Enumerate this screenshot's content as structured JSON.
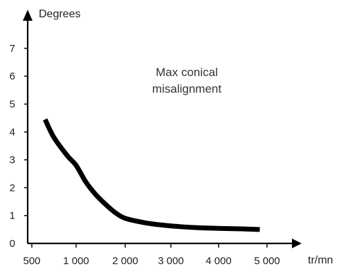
{
  "chart_data": {
    "type": "line",
    "title": "",
    "xlabel": "tr/mn",
    "ylabel": "Degrees",
    "annotation": [
      "Max conical",
      "misalignment"
    ],
    "x_ticks": [
      {
        "value": 500,
        "label": "500"
      },
      {
        "value": 1000,
        "label": "1 000"
      },
      {
        "value": 2000,
        "label": "2 000"
      },
      {
        "value": 3000,
        "label": "3 000"
      },
      {
        "value": 4000,
        "label": "4 000"
      },
      {
        "value": 5000,
        "label": "5 000"
      }
    ],
    "y_ticks": [
      {
        "value": 0,
        "label": "0"
      },
      {
        "value": 1,
        "label": "1"
      },
      {
        "value": 2,
        "label": "2"
      },
      {
        "value": 3,
        "label": "3"
      },
      {
        "value": 4,
        "label": "4"
      },
      {
        "value": 5,
        "label": "5"
      },
      {
        "value": 6,
        "label": "6"
      },
      {
        "value": 7,
        "label": "7"
      }
    ],
    "xlim": [
      500,
      5000
    ],
    "ylim": [
      0,
      7
    ],
    "grid": false,
    "series": [
      {
        "x": [
          650,
          750,
          900,
          1000,
          1200,
          1400,
          1600,
          1800,
          2000,
          2400,
          2800,
          3200,
          3600,
          4000,
          4500,
          4850
        ],
        "y": [
          4.45,
          3.8,
          3.15,
          2.8,
          2.2,
          1.75,
          1.4,
          1.1,
          0.9,
          0.75,
          0.66,
          0.6,
          0.56,
          0.54,
          0.52,
          0.5
        ]
      }
    ],
    "colors": {
      "line": "#000000",
      "axis": "#000000"
    }
  }
}
